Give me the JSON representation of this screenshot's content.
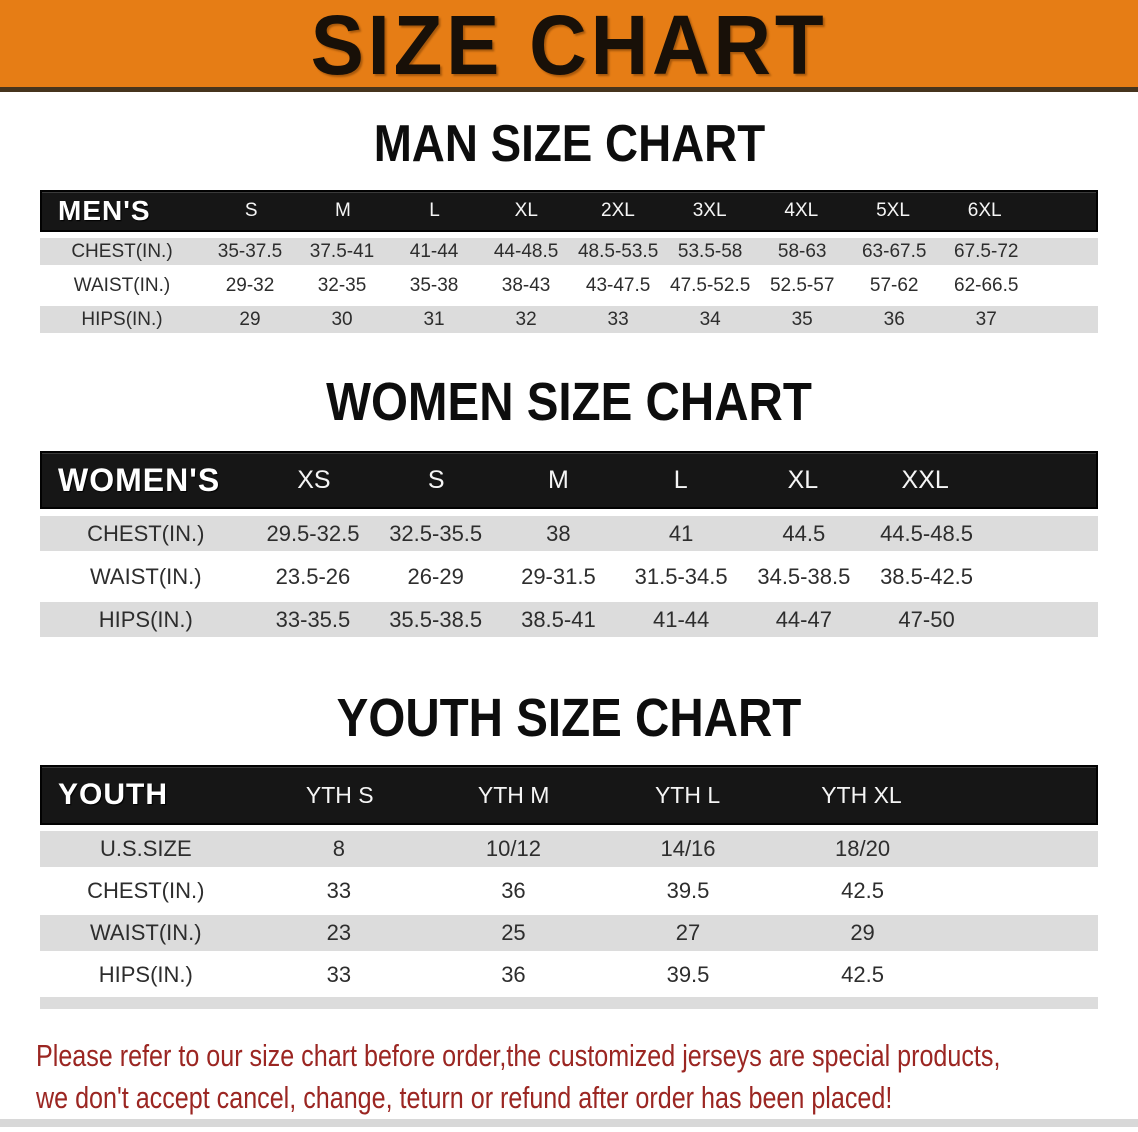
{
  "banner": {
    "title": "SIZE CHART"
  },
  "colors": {
    "banner_bg": "#e67d15",
    "header_bg": "#161616",
    "row_gray": "#dcdcdc",
    "disclaimer_red": "#9b2622"
  },
  "sections": [
    {
      "heading": "MAN SIZE CHART",
      "table": {
        "corner_label": "MEN'S",
        "size_columns": [
          "S",
          "M",
          "L",
          "XL",
          "2XL",
          "3XL",
          "4XL",
          "5XL",
          "6XL"
        ],
        "rows": [
          {
            "label": "CHEST(IN.)",
            "values": [
              "35-37.5",
              "37.5-41",
              "41-44",
              "44-48.5",
              "48.5-53.5",
              "53.5-58",
              "58-63",
              "63-67.5",
              "67.5-72"
            ]
          },
          {
            "label": "WAIST(IN.)",
            "values": [
              "29-32",
              "32-35",
              "35-38",
              "38-43",
              "43-47.5",
              "47.5-52.5",
              "52.5-57",
              "57-62",
              "62-66.5"
            ]
          },
          {
            "label": "HIPS(IN.)",
            "values": [
              "29",
              "30",
              "31",
              "32",
              "33",
              "34",
              "35",
              "36",
              "37"
            ]
          }
        ]
      }
    },
    {
      "heading": "WOMEN SIZE CHART",
      "table": {
        "corner_label": "WOMEN'S",
        "size_columns": [
          "XS",
          "S",
          "M",
          "L",
          "XL",
          "XXL"
        ],
        "rows": [
          {
            "label": "CHEST(IN.)",
            "values": [
              "29.5-32.5",
              "32.5-35.5",
              "38",
              "41",
              "44.5",
              "44.5-48.5"
            ]
          },
          {
            "label": "WAIST(IN.)",
            "values": [
              "23.5-26",
              "26-29",
              "29-31.5",
              "31.5-34.5",
              "34.5-38.5",
              "38.5-42.5"
            ]
          },
          {
            "label": "HIPS(IN.)",
            "values": [
              "33-35.5",
              "35.5-38.5",
              "38.5-41",
              "41-44",
              "44-47",
              "47-50"
            ]
          }
        ]
      }
    },
    {
      "heading": "YOUTH SIZE CHART",
      "table": {
        "corner_label": "YOUTH",
        "size_columns": [
          "YTH S",
          "YTH M",
          "YTH L",
          "YTH XL"
        ],
        "rows": [
          {
            "label": "U.S.SIZE",
            "values": [
              "8",
              "10/12",
              "14/16",
              "18/20"
            ]
          },
          {
            "label": "CHEST(IN.)",
            "values": [
              "33",
              "36",
              "39.5",
              "42.5"
            ]
          },
          {
            "label": "WAIST(IN.)",
            "values": [
              "23",
              "25",
              "27",
              "29"
            ]
          },
          {
            "label": "HIPS(IN.)",
            "values": [
              "33",
              "36",
              "39.5",
              "42.5"
            ]
          }
        ]
      }
    }
  ],
  "disclaimer": {
    "line1": "Please refer to our size chart before order,the customized jerseys are special products,",
    "line2": "we don't accept cancel, change, teturn or refund after order has been placed!"
  }
}
